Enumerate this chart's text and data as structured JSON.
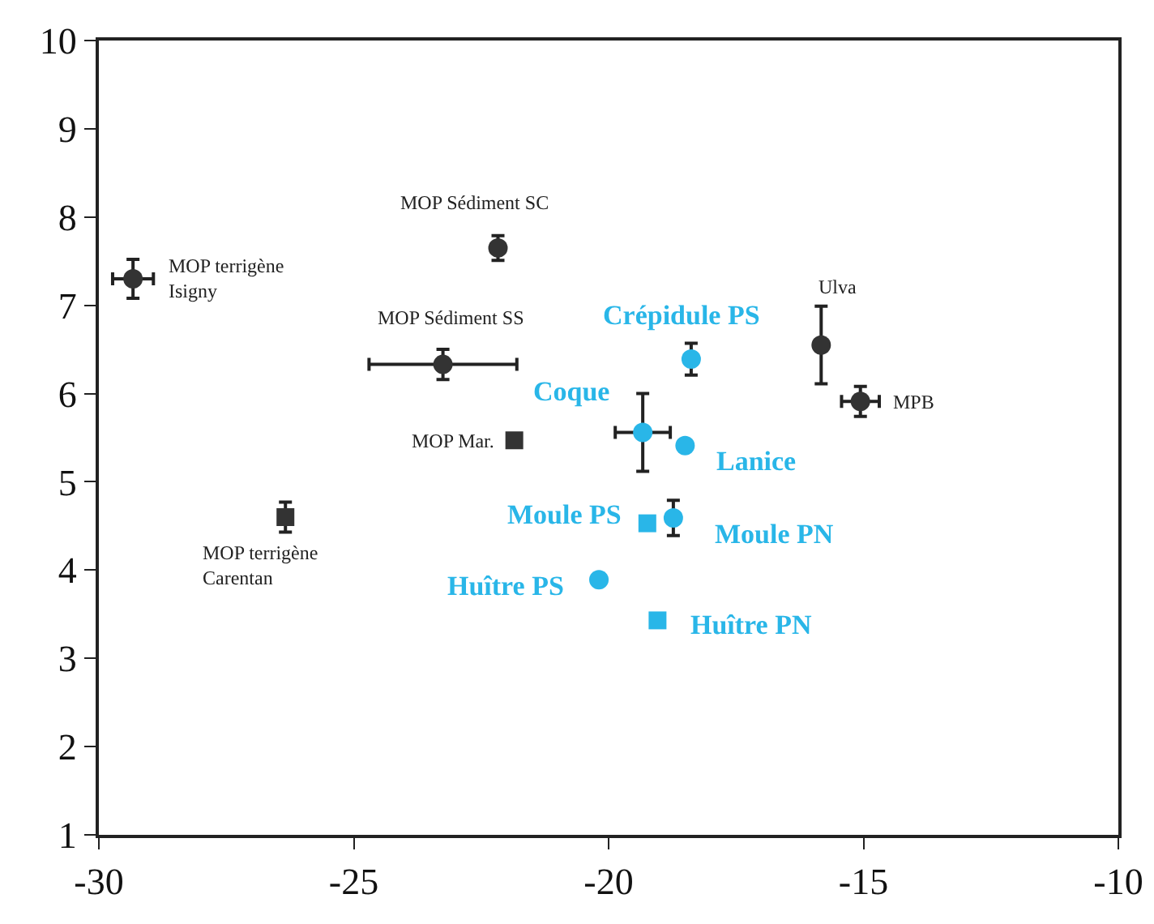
{
  "chart_data": {
    "type": "scatter",
    "xlim": [
      -30,
      -10
    ],
    "ylim": [
      1,
      10
    ],
    "xticks": [
      -30,
      -25,
      -20,
      -15,
      -10
    ],
    "yticks": [
      1,
      2,
      3,
      4,
      5,
      6,
      7,
      8,
      9,
      10
    ],
    "grid": false,
    "series": [
      {
        "color": "#333333",
        "marker": "circle",
        "x": [
          -29.33,
          -22.17,
          -23.25,
          -15.83,
          -15.06
        ],
        "values": [
          7.3,
          7.65,
          6.33,
          6.55,
          5.91
        ],
        "errors": [
          0.22,
          0.14,
          0.17,
          0.44,
          0.17
        ],
        "xerrors": [
          0.4,
          null,
          1.45,
          null,
          0.37
        ]
      },
      {
        "color": "#333333",
        "marker": "square",
        "x": [
          -21.85,
          -26.34
        ],
        "values": [
          5.47,
          4.6
        ],
        "errors": [
          null,
          0.17
        ]
      },
      {
        "color": "#29b6e8",
        "marker": "circle",
        "x": [
          -18.38,
          -19.33,
          -18.5,
          -18.73,
          -20.19
        ],
        "values": [
          6.39,
          5.56,
          5.41,
          4.59,
          3.89
        ],
        "errors": [
          0.18,
          0.44,
          null,
          0.2,
          null
        ],
        "xerrors": [
          null,
          0.54,
          null,
          null,
          null
        ]
      },
      {
        "color": "#29b6e8",
        "marker": "square",
        "x": [
          -19.24,
          -19.04
        ],
        "values": [
          4.53,
          3.43
        ]
      }
    ],
    "annotations": [
      {
        "text": "MOP terrigène\nIsigny",
        "x": -29.33,
        "y": 7.3
      },
      {
        "text": "MOP Sédiment SC",
        "x": -22.17,
        "y": 7.65
      },
      {
        "text": "MOP Sédiment SS",
        "x": -23.25,
        "y": 6.33
      },
      {
        "text": "MOP Mar.",
        "x": -21.85,
        "y": 5.47
      },
      {
        "text": "MOP terrigène\nCarentan",
        "x": -26.34,
        "y": 4.6
      },
      {
        "text": "Crépidule PS",
        "x": -18.38,
        "y": 6.39
      },
      {
        "text": "Ulva",
        "x": -15.83,
        "y": 6.55
      },
      {
        "text": "MPB",
        "x": -15.06,
        "y": 5.91
      },
      {
        "text": "Coque",
        "x": -19.33,
        "y": 5.56
      },
      {
        "text": "Lanice",
        "x": -18.5,
        "y": 5.41
      },
      {
        "text": "Moule PS",
        "x": -19.24,
        "y": 4.53
      },
      {
        "text": "Moule PN",
        "x": -18.73,
        "y": 4.59
      },
      {
        "text": "Huître PS",
        "x": -20.19,
        "y": 3.89
      },
      {
        "text": "Huître PN",
        "x": -19.04,
        "y": 3.43
      }
    ]
  }
}
